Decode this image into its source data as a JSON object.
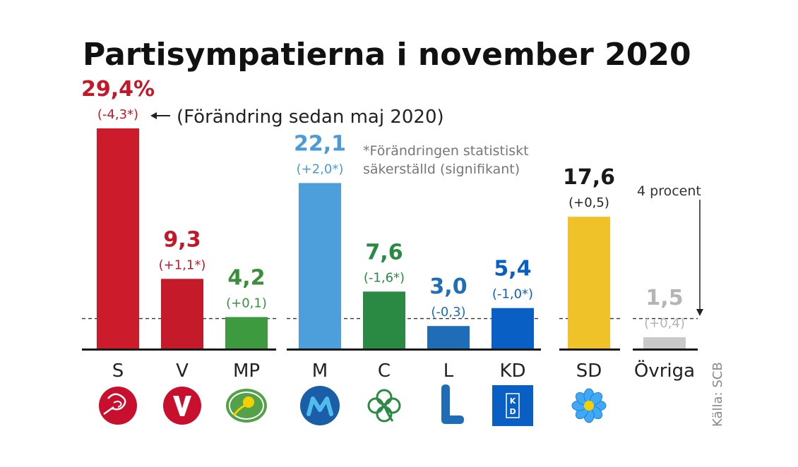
{
  "chart_data": {
    "type": "bar",
    "title": "Partisympatierna i november 2020",
    "unit_suffix_first": "%",
    "change_note": "(Förändring sedan maj 2020)",
    "significance_note": [
      "*Förändringen statistiskt",
      "säkerställd (signifikant)"
    ],
    "threshold": {
      "value": 4,
      "label": "4 procent"
    },
    "source": "Källa: SCB",
    "ylim": [
      0,
      30
    ],
    "categories": [
      "S",
      "V",
      "MP",
      "M",
      "C",
      "L",
      "KD",
      "SD",
      "Övriga"
    ],
    "values": [
      29.4,
      9.3,
      4.2,
      22.1,
      7.6,
      3.0,
      5.4,
      17.6,
      1.5
    ],
    "value_labels": [
      "29,4%",
      "9,3",
      "4,2",
      "22,1",
      "7,6",
      "3,0",
      "5,4",
      "17,6",
      "1,5"
    ],
    "changes": [
      "(-4,3*)",
      "(+1,1*)",
      "(+0,1)",
      "(+2,0*)",
      "(-1,6*)",
      "(-0,3)",
      "(-1,0*)",
      "(+0,5)",
      "(+0,4)"
    ],
    "colors": [
      "#cc1b2b",
      "#c41a2a",
      "#3d9a3f",
      "#4d9fdc",
      "#2a8a43",
      "#1f6db6",
      "#0a5fc4",
      "#f0c22a",
      "#c9c9c9"
    ],
    "label_colors": [
      "#c2182a",
      "#c2182a",
      "#3a8f3c",
      "#4a9bd8",
      "#2a8a43",
      "#1f6db6",
      "#0a5fc4",
      "#1a1a1a",
      "#b5b5b5"
    ],
    "groups": [
      [
        0,
        1,
        2
      ],
      [
        3,
        4,
        5,
        6
      ],
      [
        7
      ],
      [
        8
      ]
    ],
    "logos": [
      "s-rose-logo",
      "v-logo",
      "mp-sun-logo",
      "m-logo",
      "c-clover-logo",
      "l-logo",
      "kd-logo",
      "sd-flower-logo",
      "none"
    ]
  }
}
